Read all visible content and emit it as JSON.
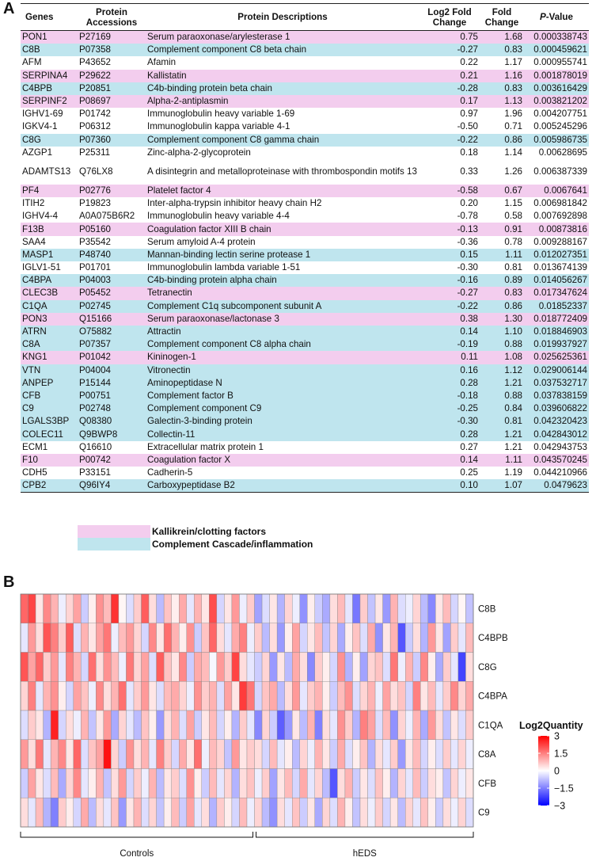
{
  "panel_a": {
    "letter": "A",
    "headers": {
      "genes": "Genes",
      "accessions": "Protein Accessions",
      "descriptions": "Protein Descriptions",
      "log2fc": "Log2 Fold Change",
      "fc": "Fold Change",
      "pvalue_italic": "P",
      "pvalue_rest": "-Value"
    },
    "rows": [
      {
        "gene": "PON1",
        "acc": "P27169",
        "desc": "Serum paraoxonase/arylesterase 1",
        "lfc": "0.75",
        "fc": "1.68",
        "p": "0.000338743",
        "cat": "kal"
      },
      {
        "gene": "C8B",
        "acc": "P07358",
        "desc": "Complement component C8 beta chain",
        "lfc": "-0.27",
        "fc": "0.83",
        "p": "0.000459621",
        "cat": "comp"
      },
      {
        "gene": "AFM",
        "acc": "P43652",
        "desc": "Afamin",
        "lfc": "0.22",
        "fc": "1.17",
        "p": "0.000955741",
        "cat": ""
      },
      {
        "gene": "SERPINA4",
        "acc": "P29622",
        "desc": "Kallistatin",
        "lfc": "0.21",
        "fc": "1.16",
        "p": "0.001878019",
        "cat": "kal"
      },
      {
        "gene": "C4BPB",
        "acc": "P20851",
        "desc": "C4b-binding protein beta chain",
        "lfc": "-0.28",
        "fc": "0.83",
        "p": "0.003616429",
        "cat": "comp"
      },
      {
        "gene": "SERPINF2",
        "acc": "P08697",
        "desc": "Alpha-2-antiplasmin",
        "lfc": "0.17",
        "fc": "1.13",
        "p": "0.003821202",
        "cat": "kal"
      },
      {
        "gene": "IGHV1-69",
        "acc": "P01742",
        "desc": "Immunoglobulin heavy variable 1-69",
        "lfc": "0.97",
        "fc": "1.96",
        "p": "0.004207751",
        "cat": ""
      },
      {
        "gene": "IGKV4-1",
        "acc": "P06312",
        "desc": "Immunoglobulin kappa variable 4-1",
        "lfc": "-0.50",
        "fc": "0.71",
        "p": "0.005245296",
        "cat": ""
      },
      {
        "gene": "C8G",
        "acc": "P07360",
        "desc": "Complement component C8 gamma chain",
        "lfc": "-0.22",
        "fc": "0.86",
        "p": "0.005986735",
        "cat": "comp"
      },
      {
        "gene": "AZGP1",
        "acc": "P25311",
        "desc": "Zinc-alpha-2-glycoprotein",
        "lfc": "0.18",
        "fc": "1.14",
        "p": "0.00628695",
        "cat": ""
      },
      {
        "gene": "ADAMTS13",
        "acc": "Q76LX8",
        "desc": "A disintegrin and metalloproteinase with thrombospondin motifs 13",
        "lfc": "0.33",
        "fc": "1.26",
        "p": "0.006387339",
        "cat": "",
        "tall": true
      },
      {
        "gene": "PF4",
        "acc": "P02776",
        "desc": "Platelet factor 4",
        "lfc": "-0.58",
        "fc": "0.67",
        "p": "0.0067641",
        "cat": "kal"
      },
      {
        "gene": "ITIH2",
        "acc": "P19823",
        "desc": "Inter-alpha-trypsin inhibitor heavy chain H2",
        "lfc": "0.20",
        "fc": "1.15",
        "p": "0.006981842",
        "cat": ""
      },
      {
        "gene": "IGHV4-4",
        "acc": "A0A075B6R2",
        "desc": "Immunoglobulin heavy variable 4-4",
        "lfc": "-0.78",
        "fc": "0.58",
        "p": "0.007692898",
        "cat": ""
      },
      {
        "gene": "F13B",
        "acc": "P05160",
        "desc": "Coagulation factor XIII B chain",
        "lfc": "-0.13",
        "fc": "0.91",
        "p": "0.00873816",
        "cat": "kal"
      },
      {
        "gene": "SAA4",
        "acc": "P35542",
        "desc": "Serum amyloid A-4 protein",
        "lfc": "-0.36",
        "fc": "0.78",
        "p": "0.009288167",
        "cat": ""
      },
      {
        "gene": "MASP1",
        "acc": "P48740",
        "desc": "Mannan-binding lectin serine protease 1",
        "lfc": "0.15",
        "fc": "1.11",
        "p": "0.012027351",
        "cat": "comp"
      },
      {
        "gene": "IGLV1-51",
        "acc": "P01701",
        "desc": "Immunoglobulin lambda variable 1-51",
        "lfc": "-0.30",
        "fc": "0.81",
        "p": "0.013674139",
        "cat": ""
      },
      {
        "gene": "C4BPA",
        "acc": "P04003",
        "desc": "C4b-binding protein alpha chain",
        "lfc": "-0.16",
        "fc": "0.89",
        "p": "0.014056267",
        "cat": "comp"
      },
      {
        "gene": "CLEC3B",
        "acc": "P05452",
        "desc": "Tetranectin",
        "lfc": "-0.27",
        "fc": "0.83",
        "p": "0.017347624",
        "cat": "kal"
      },
      {
        "gene": "C1QA",
        "acc": "P02745",
        "desc": "Complement C1q subcomponent subunit A",
        "lfc": "-0.22",
        "fc": "0.86",
        "p": "0.01852337",
        "cat": "comp"
      },
      {
        "gene": "PON3",
        "acc": "Q15166",
        "desc": "Serum paraoxonase/lactonase 3",
        "lfc": "0.38",
        "fc": "1.30",
        "p": "0.018772409",
        "cat": "kal"
      },
      {
        "gene": "ATRN",
        "acc": "O75882",
        "desc": "Attractin",
        "lfc": "0.14",
        "fc": "1.10",
        "p": "0.018846903",
        "cat": "comp"
      },
      {
        "gene": "C8A",
        "acc": "P07357",
        "desc": "Complement component C8 alpha chain",
        "lfc": "-0.19",
        "fc": "0.88",
        "p": "0.019937927",
        "cat": "comp"
      },
      {
        "gene": "KNG1",
        "acc": "P01042",
        "desc": "Kininogen-1",
        "lfc": "0.11",
        "fc": "1.08",
        "p": "0.025625361",
        "cat": "kal"
      },
      {
        "gene": "VTN",
        "acc": "P04004",
        "desc": "Vitronectin",
        "lfc": "0.16",
        "fc": "1.12",
        "p": "0.029006144",
        "cat": "comp"
      },
      {
        "gene": "ANPEP",
        "acc": "P15144",
        "desc": "Aminopeptidase N",
        "lfc": "0.28",
        "fc": "1.21",
        "p": "0.037532717",
        "cat": "comp"
      },
      {
        "gene": "CFB",
        "acc": "P00751",
        "desc": "Complement factor B",
        "lfc": "-0.18",
        "fc": "0.88",
        "p": "0.037838159",
        "cat": "comp"
      },
      {
        "gene": "C9",
        "acc": "P02748",
        "desc": "Complement component C9",
        "lfc": "-0.25",
        "fc": "0.84",
        "p": "0.039606822",
        "cat": "comp"
      },
      {
        "gene": "LGALS3BP",
        "acc": "Q08380",
        "desc": "Galectin-3-binding protein",
        "lfc": "-0.30",
        "fc": "0.81",
        "p": "0.042320423",
        "cat": "comp"
      },
      {
        "gene": "COLEC11",
        "acc": "Q9BWP8",
        "desc": "Collectin-11",
        "lfc": "0.28",
        "fc": "1.21",
        "p": "0.042843012",
        "cat": "comp"
      },
      {
        "gene": "ECM1",
        "acc": "Q16610",
        "desc": "Extracellular matrix protein 1",
        "lfc": "0.27",
        "fc": "1.21",
        "p": "0.042943753",
        "cat": ""
      },
      {
        "gene": "F10",
        "acc": "P00742",
        "desc": "Coagulation factor X",
        "lfc": "0.14",
        "fc": "1.11",
        "p": "0.043570245",
        "cat": "kal"
      },
      {
        "gene": "CDH5",
        "acc": "P33151",
        "desc": "Cadherin-5",
        "lfc": "0.25",
        "fc": "1.19",
        "p": "0.044210966",
        "cat": ""
      },
      {
        "gene": "CPB2",
        "acc": "Q96IY4",
        "desc": "Carboxypeptidase B2",
        "lfc": "0.10",
        "fc": "1.07",
        "p": "0.0479623",
        "cat": "comp"
      }
    ],
    "legend": [
      {
        "label": "Kallikrein/clotting factors",
        "color": "#f3cdee"
      },
      {
        "label": "Complement Cascade/inflammation",
        "color": "#bfe5ee"
      }
    ],
    "colors": {
      "kal": "#f3cdee",
      "comp": "#bfe5ee"
    }
  },
  "panel_b": {
    "letter": "B"
  },
  "chart_data": {
    "type": "heatmap",
    "rows": [
      "C8B",
      "C4BPB",
      "C8G",
      "C4BPA",
      "C1QA",
      "C8A",
      "CFB",
      "C9"
    ],
    "group_labels": [
      "Controls",
      "hEDS"
    ],
    "group_sizes": [
      31,
      29
    ],
    "n_columns": 60,
    "colorbar": {
      "title": "Log2Quantity",
      "ticks": [
        "3",
        "1.5",
        "0",
        "−1.5",
        "−3"
      ],
      "tick_values": [
        3,
        1.5,
        0,
        -1.5,
        -3
      ],
      "range": [
        -3,
        3
      ],
      "colors": {
        "low": "#0000ff",
        "mid": "#ffffff",
        "high": "#ff0000"
      }
    },
    "values": [
      [
        1.8,
        2.2,
        0.3,
        1.4,
        0.9,
        -0.2,
        0.5,
        1.1,
        -0.6,
        0.2,
        1.3,
        0.8,
        2.4,
        0.1,
        -0.4,
        0.6,
        1.9,
        0.4,
        -0.8,
        0.7,
        0.2,
        1.0,
        -0.3,
        0.9,
        0.3,
        2.1,
        -0.5,
        0.3,
        1.2,
        -0.2,
        0.6,
        -1.1,
        -0.4,
        0.3,
        -0.9,
        0.5,
        -0.2,
        -1.3,
        0.2,
        -0.6,
        -1.0,
        0.4,
        0.8,
        -0.3,
        -1.6,
        0.6,
        -0.7,
        0.3,
        -1.2,
        0.9,
        -0.4,
        -0.2,
        0.5,
        -0.8,
        -1.4,
        0.3,
        0.8,
        -0.5,
        0.1,
        -0.7
      ],
      [
        -0.3,
        1.2,
        0.4,
        2.0,
        1.5,
        0.6,
        1.9,
        -0.4,
        0.9,
        0.3,
        1.1,
        1.6,
        -0.2,
        0.8,
        1.2,
        0.5,
        -0.5,
        1.4,
        0.3,
        1.7,
        0.9,
        0.2,
        1.3,
        -0.6,
        0.7,
        1.8,
        0.4,
        -0.3,
        1.0,
        1.5,
        -0.2,
        0.6,
        -0.8,
        0.4,
        -1.2,
        0.2,
        1.1,
        -0.5,
        0.3,
        0.8,
        -0.7,
        0.5,
        -1.0,
        0.2,
        0.7,
        -0.4,
        1.0,
        -1.3,
        0.3,
        0.9,
        -2.0,
        -0.6,
        0.4,
        -0.9,
        1.2,
        0.3,
        -1.1,
        0.6,
        -0.3,
        0.8
      ],
      [
        2.0,
        1.1,
        1.8,
        0.6,
        1.2,
        -0.3,
        1.5,
        0.9,
        -0.5,
        1.7,
        0.4,
        1.3,
        0.8,
        -0.2,
        1.6,
        0.5,
        1.1,
        -0.4,
        1.9,
        0.7,
        0.3,
        1.4,
        -0.6,
        1.0,
        0.8,
        -0.1,
        1.2,
        0.6,
        2.2,
        0.4,
        -0.3,
        -0.6,
        0.5,
        -1.2,
        0.3,
        -0.8,
        1.0,
        0.4,
        -1.4,
        0.6,
        0.2,
        -0.5,
        1.3,
        -0.9,
        0.2,
        -1.1,
        0.5,
        0.7,
        -0.4,
        1.6,
        -0.2,
        0.9,
        -0.6,
        1.4,
        0.2,
        -1.0,
        0.6,
        -0.3,
        -2.2,
        0.4
      ],
      [
        0.5,
        1.5,
        -0.3,
        0.9,
        1.3,
        0.2,
        -0.5,
        1.1,
        0.7,
        -0.2,
        1.4,
        0.4,
        0.9,
        1.7,
        -0.3,
        0.6,
        1.2,
        0.3,
        -0.4,
        0.8,
        1.0,
        0.5,
        -0.2,
        1.3,
        0.6,
        0.9,
        -0.4,
        1.1,
        0.3,
        2.3,
        1.6,
        -0.5,
        0.7,
        1.0,
        -0.8,
        0.4,
        1.2,
        -0.3,
        0.6,
        0.9,
        0.2,
        -0.6,
        0.8,
        1.3,
        -0.4,
        0.5,
        0.9,
        -0.2,
        1.1,
        0.4,
        0.7,
        -0.5,
        1.5,
        0.3,
        0.8,
        -0.3,
        0.6,
        1.4,
        0.5,
        1.0
      ],
      [
        -0.4,
        0.6,
        0.3,
        -0.9,
        2.6,
        -0.5,
        0.4,
        -0.2,
        0.9,
        -0.7,
        0.3,
        1.2,
        -1.0,
        0.5,
        -0.3,
        -0.8,
        0.7,
        0.2,
        -1.2,
        0.4,
        0.9,
        -0.4,
        1.1,
        -0.6,
        0.3,
        0.8,
        -0.5,
        0.2,
        -0.9,
        0.6,
        -0.3,
        -1.4,
        0.5,
        -0.6,
        -1.9,
        -1.2,
        0.3,
        -0.8,
        0.9,
        -1.5,
        0.4,
        -0.3,
        1.3,
        0.6,
        -0.9,
        1.5,
        1.1,
        -0.4,
        0.8,
        -1.3,
        0.5,
        -0.2,
        0.9,
        -1.0,
        1.2,
        0.4,
        -0.7,
        0.3,
        -0.4,
        0.6
      ],
      [
        1.2,
        0.4,
        1.6,
        -0.3,
        0.9,
        1.4,
        0.3,
        1.8,
        -0.4,
        0.7,
        1.1,
        2.8,
        0.5,
        -0.6,
        1.3,
        0.4,
        0.9,
        -0.3,
        1.5,
        0.6,
        -0.5,
        1.0,
        0.3,
        1.7,
        -0.2,
        0.8,
        0.5,
        -0.7,
        1.2,
        0.3,
        0.6,
        0.4,
        -0.5,
        0.8,
        -0.3,
        0.2,
        -0.8,
        0.5,
        -0.2,
        0.9,
        0.3,
        -0.6,
        1.0,
        -0.4,
        0.2,
        0.7,
        -0.9,
        0.4,
        -0.3,
        0.6,
        -1.2,
        0.3,
        0.8,
        -0.5,
        0.2,
        -0.4,
        0.6,
        -0.3,
        0.5,
        -0.2
      ],
      [
        -0.6,
        1.1,
        0.3,
        -0.4,
        0.8,
        -1.0,
        0.5,
        1.4,
        -0.3,
        0.2,
        0.9,
        -0.7,
        0.4,
        1.2,
        -0.5,
        0.6,
        -0.2,
        0.9,
        -0.8,
        0.3,
        0.6,
        -0.4,
        1.3,
        0.2,
        -0.6,
        0.8,
        -0.3,
        0.5,
        -0.9,
        0.4,
        0.7,
        -0.2,
        0.6,
        -1.1,
        0.3,
        0.8,
        -0.5,
        1.0,
        -0.3,
        0.5,
        -0.8,
        -2.0,
        0.4,
        0.9,
        -0.6,
        0.3,
        -0.4,
        0.7,
        0.2,
        -0.9,
        0.5,
        -0.3,
        0.8,
        -0.6,
        0.4,
        0.2,
        -0.7,
        0.5,
        -0.2,
        0.3
      ],
      [
        0.4,
        -0.3,
        0.8,
        -0.9,
        -1.5,
        0.6,
        0.2,
        -0.5,
        1.0,
        -0.8,
        0.4,
        -0.3,
        0.7,
        -1.2,
        0.3,
        0.9,
        -0.4,
        0.5,
        -0.7,
        0.2,
        0.8,
        -0.6,
        1.1,
        -0.3,
        0.4,
        -0.9,
        0.6,
        0.2,
        -0.5,
        0.8,
        -0.2,
        0.5,
        -0.8,
        -1.3,
        0.4,
        -0.3,
        0.7,
        -0.6,
        0.3,
        -1.0,
        0.5,
        -0.4,
        0.9,
        0.2,
        -0.7,
        0.4,
        -0.2,
        0.6,
        -0.5,
        0.3,
        -0.8,
        0.5,
        -0.3,
        0.7,
        0.2,
        -0.6,
        0.4,
        -0.2,
        0.5,
        -0.4
      ]
    ]
  }
}
